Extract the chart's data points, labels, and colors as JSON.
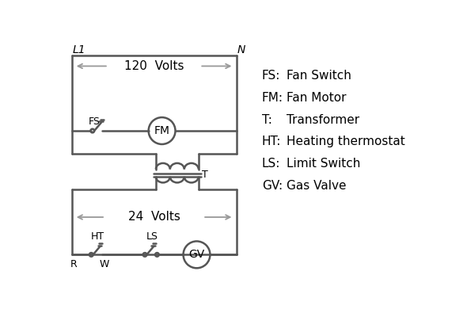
{
  "bg_color": "#ffffff",
  "line_color": "#555555",
  "arrow_color": "#999999",
  "text_color": "#000000",
  "legend": [
    [
      "FS:",
      "Fan Switch"
    ],
    [
      "FM:",
      "Fan Motor"
    ],
    [
      "T:",
      "Transformer"
    ],
    [
      "HT:",
      "Heating thermostat"
    ],
    [
      "LS:",
      "Limit Switch"
    ],
    [
      "GV:",
      "Gas Valve"
    ]
  ]
}
